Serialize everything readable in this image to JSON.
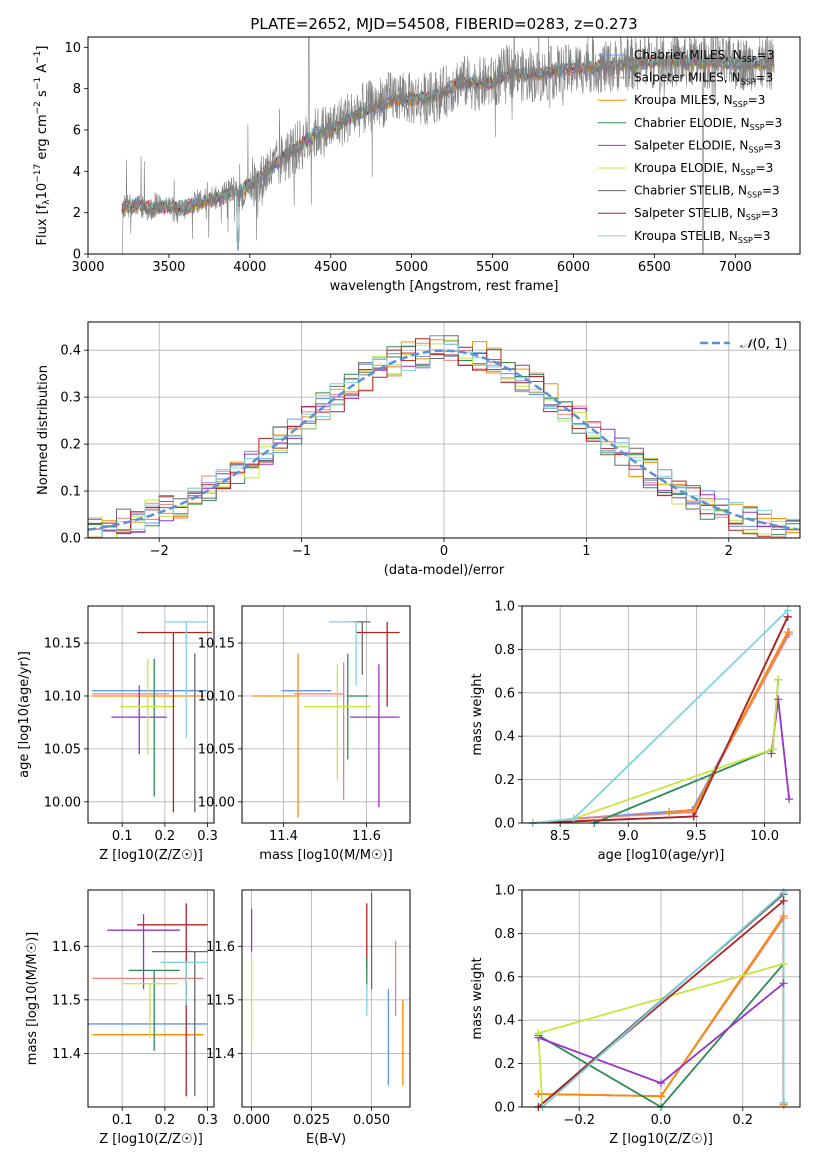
{
  "chart_data": [
    {
      "type": "line",
      "title": "PLATE=2652, MJD=54508, FIBERID=0283, z=0.273",
      "xlabel": "wavelength [Angstrom, rest frame]",
      "ylabel": "Flux [f_λ 10^-17 erg cm^-2 s^-1 A^-1]",
      "xlim": [
        3000,
        7400
      ],
      "ylim": [
        0,
        10.5
      ],
      "xticks": [
        "3000",
        "3500",
        "4000",
        "4500",
        "5000",
        "5500",
        "6000",
        "6500",
        "7000"
      ],
      "yticks": [
        "0",
        "2",
        "4",
        "6",
        "8",
        "10"
      ],
      "data_series": {
        "name": "",
        "color": "#808080",
        "x": [
          3210,
          3240,
          3280,
          3320,
          3360,
          3400,
          3450,
          3500,
          3550,
          3600,
          3650,
          3700,
          3750,
          3800,
          3850,
          3900,
          3950,
          4000,
          4050,
          4100,
          4150,
          4200,
          4250,
          4300,
          4350,
          4400,
          4500,
          4600,
          4700,
          4800,
          4900,
          5000,
          5100,
          5200,
          5300,
          5400,
          5500,
          5600,
          5700,
          5800,
          5900,
          6000,
          6100,
          6200,
          6300,
          6400,
          6500,
          6600,
          6700,
          6800,
          6900,
          7000,
          7100,
          7200
        ],
        "y": [
          2.1,
          2.6,
          2.3,
          2.4,
          2.1,
          2.2,
          2.5,
          2.3,
          2.0,
          2.2,
          2.5,
          2.6,
          2.8,
          2.7,
          3.0,
          3.2,
          2.6,
          3.6,
          3.2,
          4.0,
          4.1,
          4.6,
          4.9,
          5.2,
          5.5,
          5.8,
          6.1,
          6.6,
          7.0,
          7.3,
          7.7,
          7.5,
          7.5,
          7.8,
          8.4,
          8.2,
          8.3,
          8.9,
          8.6,
          8.6,
          8.8,
          8.9,
          9.1,
          9.0,
          9.2,
          9.2,
          9.3,
          9.3,
          9.3,
          9.3,
          9.2,
          9.2,
          9.2,
          9.2
        ]
      },
      "model_series": [
        {
          "name": "Chabrier MILES, N_SSP=3",
          "color": "#6495ed"
        },
        {
          "name": "Salpeter MILES, N_SSP=3",
          "color": "#f08080"
        },
        {
          "name": "Kroupa MILES, N_SSP=3",
          "color": "#ff8c00"
        },
        {
          "name": "Chabrier ELODIE, N_SSP=3",
          "color": "#2e8b57"
        },
        {
          "name": "Salpeter ELODIE, N_SSP=3",
          "color": "#9932cc"
        },
        {
          "name": "Kroupa ELODIE, N_SSP=3",
          "color": "#c8e63c"
        },
        {
          "name": "Chabrier STELIB, N_SSP=3",
          "color": "#696969"
        },
        {
          "name": "Salpeter STELIB, N_SSP=3",
          "color": "#b22222"
        },
        {
          "name": "Kroupa STELIB, N_SSP=3",
          "color": "#7fd3dd"
        }
      ],
      "model_x": [
        3210,
        3300,
        3400,
        3500,
        3600,
        3700,
        3800,
        3900,
        4000,
        4100,
        4200,
        4300,
        4400,
        4500,
        4600,
        4700,
        4800,
        4900,
        5000,
        5100,
        5200,
        5300,
        5400,
        5500,
        5600,
        5700,
        5800,
        5900,
        6000,
        6100,
        6200,
        6300,
        6400,
        6500,
        6600,
        6700,
        6800,
        6900,
        7000,
        7100,
        7200
      ],
      "model_y": [
        2.2,
        2.4,
        2.2,
        2.3,
        2.2,
        2.5,
        2.7,
        3.0,
        3.3,
        4.0,
        4.6,
        5.2,
        5.8,
        6.0,
        6.5,
        6.9,
        7.2,
        7.5,
        7.5,
        7.6,
        7.8,
        8.3,
        8.3,
        8.3,
        8.7,
        8.7,
        8.7,
        8.9,
        9.0,
        9.0,
        9.1,
        9.2,
        9.2,
        9.3,
        9.3,
        9.3,
        9.3,
        9.3,
        9.2,
        9.2,
        9.2
      ]
    },
    {
      "type": "histogram",
      "xlabel": "(data-model)/error",
      "ylabel": "Normed distribution",
      "xlim": [
        -2.5,
        2.5
      ],
      "ylim": [
        0,
        0.46
      ],
      "xticks": [
        "−2",
        "−1",
        "0",
        "1",
        "2"
      ],
      "yticks": [
        "0.0",
        "0.1",
        "0.2",
        "0.3",
        "0.4"
      ],
      "legend": "$\\mathcal{N}(0,1)$",
      "gaussian_color": "#5b8fd6",
      "bin_edges_start": -2.5,
      "bin_width": 0.1,
      "colors": [
        "#6495ed",
        "#f08080",
        "#ff8c00",
        "#2e8b57",
        "#9932cc",
        "#c8e63c",
        "#696969",
        "#b22222",
        "#7fd3dd"
      ]
    },
    {
      "type": "errorbar",
      "xlabel": "Z [log10(Z/Z☉)]",
      "ylabel": "age [log10(age/yr)]",
      "xlim": [
        0.02,
        0.315
      ],
      "ylim": [
        9.98,
        10.185
      ],
      "xticks": [
        "0.1",
        "0.2",
        "0.3"
      ],
      "yticks": [
        "10.00",
        "10.05",
        "10.10",
        "10.15"
      ],
      "points": [
        {
          "color": "#6495ed",
          "x": 0.165,
          "xerr": [
            0.135,
            0.135
          ],
          "y": 10.105,
          "yerr": [
            0,
            0
          ]
        },
        {
          "color": "#f08080",
          "x": 0.12,
          "xerr": [
            0.09,
            0.09
          ],
          "y": 10.102,
          "yerr": [
            0,
            0
          ]
        },
        {
          "color": "#ff8c00",
          "x": 0.16,
          "xerr": [
            0.13,
            0.13
          ],
          "y": 10.1,
          "yerr": [
            0,
            0
          ]
        },
        {
          "color": "#2e8b57",
          "x": 0.175,
          "xerr": [
            0,
            0
          ],
          "y": 10.095,
          "yerr": [
            0.09,
            0.04
          ]
        },
        {
          "color": "#9932cc",
          "x": 0.14,
          "xerr": [
            0.065,
            0.065
          ],
          "y": 10.08,
          "yerr": [
            0.035,
            0.03
          ]
        },
        {
          "color": "#c8e63c",
          "x": 0.16,
          "xerr": [
            0.065,
            0.065
          ],
          "y": 10.09,
          "yerr": [
            0.045,
            0.045
          ]
        },
        {
          "color": "#696969",
          "x": 0.27,
          "xerr": [
            0,
            0
          ],
          "y": 10.1,
          "yerr": [
            0.11,
            0.04
          ]
        },
        {
          "color": "#b22222",
          "x": 0.22,
          "xerr": [
            0.085,
            0.09
          ],
          "y": 10.16,
          "yerr": [
            0.17,
            0.0
          ]
        },
        {
          "color": "#7fd3dd",
          "x": 0.25,
          "xerr": [
            0.05,
            0.05
          ],
          "y": 10.17,
          "yerr": [
            0.11,
            0.0
          ]
        }
      ]
    },
    {
      "type": "errorbar",
      "xlabel": "mass [log10(M/M☉)]",
      "ylabel": "",
      "xlim": [
        11.3,
        11.705
      ],
      "ylim": [
        9.98,
        10.185
      ],
      "xticks": [
        "11.4",
        "11.6"
      ],
      "yticks": [
        "10.00",
        "10.05",
        "10.10",
        "10.15"
      ],
      "points": [
        {
          "color": "#6495ed",
          "x": 11.455,
          "xerr": [
            0.06,
            0.06
          ],
          "y": 10.105,
          "yerr": [
            0,
            0
          ]
        },
        {
          "color": "#f08080",
          "x": 11.545,
          "xerr": [
            0.12,
            0.0
          ],
          "y": 10.102,
          "yerr": [
            0.1,
            0.03
          ]
        },
        {
          "color": "#ff8c00",
          "x": 11.435,
          "xerr": [
            0.11,
            0.0
          ],
          "y": 10.1,
          "yerr": [
            0.115,
            0.04
          ]
        },
        {
          "color": "#2e8b57",
          "x": 11.555,
          "xerr": [
            0.0,
            0.05
          ],
          "y": 10.1,
          "yerr": [
            0.06,
            0.04
          ]
        },
        {
          "color": "#9932cc",
          "x": 11.63,
          "xerr": [
            0.07,
            0.05
          ],
          "y": 10.08,
          "yerr": [
            0.085,
            0.05
          ]
        },
        {
          "color": "#c8e63c",
          "x": 11.53,
          "xerr": [
            0.08,
            0.08
          ],
          "y": 10.09,
          "yerr": [
            0.07,
            0.04
          ]
        },
        {
          "color": "#696969",
          "x": 11.59,
          "xerr": [
            0.04,
            0.02
          ],
          "y": 10.17,
          "yerr": [
            0.05,
            0.0
          ]
        },
        {
          "color": "#b22222",
          "x": 11.65,
          "xerr": [
            0.075,
            0.03
          ],
          "y": 10.16,
          "yerr": [
            0.07,
            0.01
          ]
        },
        {
          "color": "#7fd3dd",
          "x": 11.575,
          "xerr": [
            0.065,
            0.0
          ],
          "y": 10.17,
          "yerr": [
            0.06,
            0.0
          ]
        }
      ]
    },
    {
      "type": "line",
      "xlabel": "age  [log10(age/yr)]",
      "ylabel": "mass weight",
      "xlim": [
        8.22,
        10.26
      ],
      "ylim": [
        0,
        1.0
      ],
      "xticks": [
        "8.5",
        "9.0",
        "9.5",
        "10.0"
      ],
      "yticks": [
        "0.0",
        "0.2",
        "0.4",
        "0.6",
        "0.8",
        "1.0"
      ],
      "series": [
        {
          "color": "#6495ed",
          "x": [
            8.6,
            9.47,
            10.18
          ],
          "y": [
            0.02,
            0.06,
            0.88
          ]
        },
        {
          "color": "#f08080",
          "x": [
            8.6,
            9.47,
            10.18
          ],
          "y": [
            0.02,
            0.05,
            0.87
          ]
        },
        {
          "color": "#ff8c00",
          "x": [
            9.3,
            9.48,
            10.17
          ],
          "y": [
            0.05,
            0.06,
            0.88
          ]
        },
        {
          "color": "#2e8b57",
          "x": [
            8.75,
            10.06,
            10.1
          ],
          "y": [
            0.0,
            0.34,
            0.66
          ]
        },
        {
          "color": "#9932cc",
          "x": [
            10.05,
            10.1,
            10.18
          ],
          "y": [
            0.32,
            0.57,
            0.11
          ]
        },
        {
          "color": "#c8e63c",
          "x": [
            8.6,
            10.06,
            10.1
          ],
          "y": [
            0.02,
            0.34,
            0.66
          ]
        },
        {
          "color": "#696969",
          "x": [
            8.3,
            9.48,
            10.17
          ],
          "y": [
            0.0,
            0.03,
            0.95
          ]
        },
        {
          "color": "#b22222",
          "x": [
            8.3,
            9.48,
            10.17
          ],
          "y": [
            0.0,
            0.03,
            0.95
          ]
        },
        {
          "color": "#7fd3dd",
          "x": [
            8.3,
            8.6,
            10.17
          ],
          "y": [
            0.0,
            0.02,
            0.98
          ]
        }
      ]
    },
    {
      "type": "errorbar",
      "xlabel": "Z [log10(Z/Z☉)]",
      "ylabel": "mass [log10(M/M☉)]",
      "xlim": [
        0.02,
        0.315
      ],
      "ylim": [
        11.3,
        11.705
      ],
      "xticks": [
        "0.1",
        "0.2",
        "0.3"
      ],
      "yticks": [
        "11.4",
        "11.5",
        "11.6"
      ],
      "points": [
        {
          "color": "#6495ed",
          "x": 0.15,
          "xerr": [
            0.13,
            0.15
          ],
          "y": 11.455,
          "yerr": [
            0,
            0
          ]
        },
        {
          "color": "#f08080",
          "x": 0.16,
          "xerr": [
            0.13,
            0.13
          ],
          "y": 11.54,
          "yerr": [
            0,
            0
          ]
        },
        {
          "color": "#ff8c00",
          "x": 0.16,
          "xerr": [
            0.13,
            0.13
          ],
          "y": 11.435,
          "yerr": [
            0,
            0
          ]
        },
        {
          "color": "#2e8b57",
          "x": 0.175,
          "xerr": [
            0.06,
            0.06
          ],
          "y": 11.555,
          "yerr": [
            0.15,
            0.0
          ]
        },
        {
          "color": "#9932cc",
          "x": 0.15,
          "xerr": [
            0.085,
            0.085
          ],
          "y": 11.63,
          "yerr": [
            0.11,
            0.03
          ]
        },
        {
          "color": "#c8e63c",
          "x": 0.165,
          "xerr": [
            0.065,
            0.065
          ],
          "y": 11.53,
          "yerr": [
            0.1,
            0.0
          ]
        },
        {
          "color": "#696969",
          "x": 0.27,
          "xerr": [
            0.1,
            0.03
          ],
          "y": 11.59,
          "yerr": [
            0.27,
            0.0
          ]
        },
        {
          "color": "#b22222",
          "x": 0.25,
          "xerr": [
            0.115,
            0.05
          ],
          "y": 11.64,
          "yerr": [
            0.32,
            0.04
          ]
        },
        {
          "color": "#7fd3dd",
          "x": 0.25,
          "xerr": [
            0.06,
            0.05
          ],
          "y": 11.57,
          "yerr": [
            0.08,
            0.0
          ]
        }
      ]
    },
    {
      "type": "errorbar",
      "xlabel": "E(B-V)",
      "ylabel": "",
      "xlim": [
        -0.004,
        0.066
      ],
      "ylim": [
        11.3,
        11.705
      ],
      "xticks": [
        "0.000",
        "0.025",
        "0.050"
      ],
      "yticks": [
        "11.4",
        "11.5",
        "11.6"
      ],
      "points": [
        {
          "color": "#9932cc",
          "x": 0.0,
          "y": 11.63,
          "yerr": [
            0.04,
            0.04
          ]
        },
        {
          "color": "#c8e63c",
          "x": 0.0,
          "y": 11.5,
          "yerr": [
            0.08,
            0.08
          ]
        },
        {
          "color": "#b22222",
          "x": 0.048,
          "y": 11.64,
          "yerr": [
            0.08,
            0.04
          ]
        },
        {
          "color": "#2e8b57",
          "x": 0.048,
          "y": 11.55,
          "yerr": [
            0.03,
            0.03
          ]
        },
        {
          "color": "#7fd3dd",
          "x": 0.048,
          "y": 11.5,
          "yerr": [
            0.03,
            0.03
          ]
        },
        {
          "color": "#696969",
          "x": 0.05,
          "y": 11.6,
          "yerr": [
            0.08,
            0.1
          ]
        },
        {
          "color": "#6495ed",
          "x": 0.057,
          "y": 11.43,
          "yerr": [
            0.09,
            0.09
          ]
        },
        {
          "color": "#f08080",
          "x": 0.06,
          "y": 11.54,
          "yerr": [
            0.07,
            0.07
          ]
        },
        {
          "color": "#ff8c00",
          "x": 0.063,
          "y": 11.42,
          "yerr": [
            0.08,
            0.08
          ]
        }
      ]
    },
    {
      "type": "line",
      "xlabel": "Z [log10(Z/Z☉)]",
      "ylabel": "mass weight",
      "xlim": [
        -0.34,
        0.34
      ],
      "ylim": [
        0,
        1.0
      ],
      "xticks": [
        "−0.2",
        "0.0",
        "0.2"
      ],
      "yticks": [
        "0.0",
        "0.2",
        "0.4",
        "0.6",
        "0.8",
        "1.0"
      ],
      "series": [
        {
          "color": "#6495ed",
          "x": [
            -0.3,
            0.0,
            0.3,
            0.3
          ],
          "y": [
            0.06,
            0.05,
            0.88,
            0.01
          ]
        },
        {
          "color": "#f08080",
          "x": [
            -0.3,
            0.0,
            0.3,
            0.3
          ],
          "y": [
            0.06,
            0.05,
            0.87,
            0.01
          ]
        },
        {
          "color": "#ff8c00",
          "x": [
            -0.3,
            0.0,
            0.3,
            0.3
          ],
          "y": [
            0.06,
            0.05,
            0.88,
            0.01
          ]
        },
        {
          "color": "#2e8b57",
          "x": [
            -0.3,
            0.0,
            0.3
          ],
          "y": [
            0.33,
            0.0,
            0.66
          ]
        },
        {
          "color": "#9932cc",
          "x": [
            -0.3,
            0.0,
            0.3
          ],
          "y": [
            0.32,
            0.11,
            0.57
          ]
        },
        {
          "color": "#c8e63c",
          "x": [
            -0.29,
            -0.3,
            0.3,
            0.3
          ],
          "y": [
            0.0,
            0.34,
            0.66,
            0.66
          ]
        },
        {
          "color": "#696969",
          "x": [
            -0.3,
            0.3,
            0.3
          ],
          "y": [
            0.0,
            0.98,
            0.02
          ]
        },
        {
          "color": "#b22222",
          "x": [
            -0.3,
            0.3,
            0.3
          ],
          "y": [
            0.0,
            0.95,
            0.02
          ]
        },
        {
          "color": "#7fd3dd",
          "x": [
            -0.29,
            0.3,
            0.3
          ],
          "y": [
            0.0,
            0.99,
            0.02
          ]
        }
      ]
    }
  ]
}
